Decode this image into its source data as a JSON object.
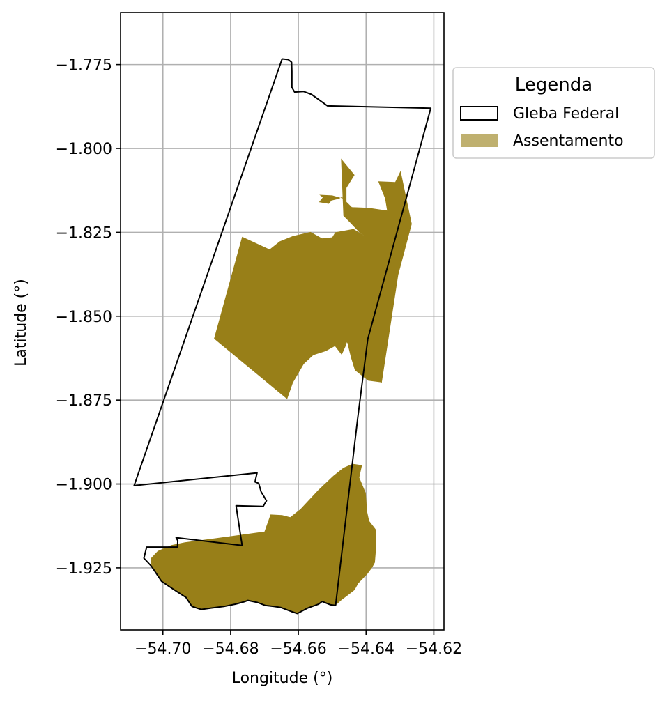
{
  "chart_data": {
    "type": "map",
    "xlabel": "Longitude (°)",
    "ylabel": "Latitude (°)",
    "xlim": [
      -54.7125,
      -54.617
    ],
    "ylim": [
      -1.9435,
      -1.7595
    ],
    "x_ticks": [
      -54.7,
      -54.68,
      -54.66,
      -54.64,
      -54.62
    ],
    "x_tick_labels": [
      "−54.70",
      "−54.68",
      "−54.66",
      "−54.64",
      "−54.62"
    ],
    "y_ticks": [
      -1.775,
      -1.8,
      -1.825,
      -1.85,
      -1.875,
      -1.9,
      -1.925
    ],
    "y_tick_labels": [
      "−1.775",
      "−1.800",
      "−1.825",
      "−1.850",
      "−1.875",
      "−1.900",
      "−1.925"
    ],
    "grid": true,
    "legend": {
      "title": "Legenda",
      "placement": "outside-upper-right",
      "entries": [
        {
          "label": "Gleba Federal",
          "style": "outline",
          "color": "#000000"
        },
        {
          "label": "Assentamento",
          "style": "fill",
          "color": "#bfb06f"
        }
      ]
    },
    "colors": {
      "assentamento_fill": "#987f18",
      "gleba_edge": "#000000",
      "grid": "#b0b0b0"
    },
    "layers": [
      {
        "name": "Gleba Federal",
        "kind": "outline",
        "coordinates": [
          [
            -54.6648,
            -1.7733
          ],
          [
            -54.663,
            -1.7735
          ],
          [
            -54.662,
            -1.7743
          ],
          [
            -54.6619,
            -1.777
          ],
          [
            -54.6619,
            -1.7818
          ],
          [
            -54.6611,
            -1.7832
          ],
          [
            -54.6585,
            -1.783
          ],
          [
            -54.6561,
            -1.7839
          ],
          [
            -54.6514,
            -1.7873
          ],
          [
            -54.6209,
            -1.788
          ],
          [
            -54.6395,
            -1.8568
          ],
          [
            -54.6425,
            -1.8806
          ],
          [
            -54.649,
            -1.9362
          ],
          [
            -54.6505,
            -1.936
          ],
          [
            -54.653,
            -1.935
          ],
          [
            -54.654,
            -1.9358
          ],
          [
            -54.6573,
            -1.937
          ],
          [
            -54.6603,
            -1.9386
          ],
          [
            -54.6621,
            -1.938
          ],
          [
            -54.6652,
            -1.9368
          ],
          [
            -54.6672,
            -1.9365
          ],
          [
            -54.6698,
            -1.9362
          ],
          [
            -54.6721,
            -1.9353
          ],
          [
            -54.6749,
            -1.9347
          ],
          [
            -54.6757,
            -1.935
          ],
          [
            -54.6785,
            -1.9358
          ],
          [
            -54.682,
            -1.9365
          ],
          [
            -54.686,
            -1.937
          ],
          [
            -54.6887,
            -1.9374
          ],
          [
            -54.6914,
            -1.9365
          ],
          [
            -54.6932,
            -1.9338
          ],
          [
            -54.697,
            -1.9313
          ],
          [
            -54.7004,
            -1.929
          ],
          [
            -54.7034,
            -1.9245
          ],
          [
            -54.7056,
            -1.9221
          ],
          [
            -54.7048,
            -1.9188
          ],
          [
            -54.6957,
            -1.9188
          ],
          [
            -54.6956,
            -1.9169
          ],
          [
            -54.6961,
            -1.916
          ],
          [
            -54.6766,
            -1.9183
          ],
          [
            -54.6784,
            -1.9065
          ],
          [
            -54.6704,
            -1.9067
          ],
          [
            -54.6694,
            -1.905
          ],
          [
            -54.671,
            -1.9023
          ],
          [
            -54.6717,
            -1.8998
          ],
          [
            -54.6728,
            -1.8994
          ],
          [
            -54.6722,
            -1.8967
          ],
          [
            -54.7085,
            -1.9005
          ]
        ]
      },
      {
        "name": "Assentamento",
        "kind": "fill",
        "parts": [
          [
            [
              -54.6474,
              -1.803
            ],
            [
              -54.6434,
              -1.8079
            ],
            [
              -54.6458,
              -1.8118
            ],
            [
              -54.6458,
              -1.8159
            ],
            [
              -54.6442,
              -1.8175
            ],
            [
              -54.6393,
              -1.8177
            ],
            [
              -54.6338,
              -1.8185
            ],
            [
              -54.6344,
              -1.8149
            ],
            [
              -54.6364,
              -1.8098
            ],
            [
              -54.6314,
              -1.81
            ],
            [
              -54.6298,
              -1.8067
            ],
            [
              -54.6265,
              -1.8225
            ],
            [
              -54.6305,
              -1.8377
            ],
            [
              -54.6354,
              -1.87
            ],
            [
              -54.6356,
              -1.8697
            ],
            [
              -54.6394,
              -1.8692
            ],
            [
              -54.6433,
              -1.8661
            ],
            [
              -54.6445,
              -1.8622
            ],
            [
              -54.6455,
              -1.858
            ],
            [
              -54.6457,
              -1.8578
            ],
            [
              -54.646,
              -1.8588
            ],
            [
              -54.6472,
              -1.8615
            ],
            [
              -54.6492,
              -1.8589
            ],
            [
              -54.6519,
              -1.8604
            ],
            [
              -54.6556,
              -1.8616
            ],
            [
              -54.6584,
              -1.8642
            ],
            [
              -54.6616,
              -1.8698
            ],
            [
              -54.6633,
              -1.8747
            ],
            [
              -54.6849,
              -1.8567
            ],
            [
              -54.6766,
              -1.8263
            ],
            [
              -54.6685,
              -1.8301
            ],
            [
              -54.6655,
              -1.8277
            ],
            [
              -54.6616,
              -1.8261
            ],
            [
              -54.6564,
              -1.8249
            ],
            [
              -54.653,
              -1.8268
            ],
            [
              -54.65,
              -1.8265
            ],
            [
              -54.6491,
              -1.825
            ],
            [
              -54.6437,
              -1.824
            ],
            [
              -54.64,
              -1.8264
            ],
            [
              -54.6418,
              -1.8252
            ],
            [
              -54.6448,
              -1.822
            ],
            [
              -54.6467,
              -1.8201
            ],
            [
              -54.6474,
              -1.803
            ]
          ],
          [
            [
              -54.6462,
              -1.8151
            ],
            [
              -54.6472,
              -1.8145
            ],
            [
              -54.648,
              -1.815
            ],
            [
              -54.6502,
              -1.8155
            ],
            [
              -54.651,
              -1.8165
            ],
            [
              -54.6539,
              -1.816
            ],
            [
              -54.6528,
              -1.8146
            ],
            [
              -54.6538,
              -1.8138
            ],
            [
              -54.65,
              -1.814
            ],
            [
              -54.6462,
              -1.8151
            ]
          ],
          [
            [
              -54.6412,
              -1.8944
            ],
            [
              -54.642,
              -1.8981
            ],
            [
              -54.6412,
              -1.9
            ],
            [
              -54.6401,
              -1.9027
            ],
            [
              -54.6397,
              -1.9082
            ],
            [
              -54.6391,
              -1.911
            ],
            [
              -54.6372,
              -1.9135
            ],
            [
              -54.637,
              -1.915
            ],
            [
              -54.637,
              -1.9185
            ],
            [
              -54.6374,
              -1.9234
            ],
            [
              -54.6382,
              -1.9249
            ],
            [
              -54.6396,
              -1.9268
            ],
            [
              -54.6423,
              -1.9296
            ],
            [
              -54.6434,
              -1.9316
            ],
            [
              -54.6458,
              -1.9335
            ],
            [
              -54.6472,
              -1.9345
            ],
            [
              -54.649,
              -1.9362
            ],
            [
              -54.6505,
              -1.936
            ],
            [
              -54.653,
              -1.935
            ],
            [
              -54.654,
              -1.9358
            ],
            [
              -54.6573,
              -1.937
            ],
            [
              -54.6603,
              -1.9386
            ],
            [
              -54.6621,
              -1.938
            ],
            [
              -54.6652,
              -1.9368
            ],
            [
              -54.6672,
              -1.9365
            ],
            [
              -54.6698,
              -1.9362
            ],
            [
              -54.6721,
              -1.9353
            ],
            [
              -54.6749,
              -1.9347
            ],
            [
              -54.6757,
              -1.935
            ],
            [
              -54.6785,
              -1.9358
            ],
            [
              -54.682,
              -1.9365
            ],
            [
              -54.686,
              -1.937
            ],
            [
              -54.6887,
              -1.9374
            ],
            [
              -54.6914,
              -1.9365
            ],
            [
              -54.6932,
              -1.9338
            ],
            [
              -54.697,
              -1.9313
            ],
            [
              -54.7004,
              -1.929
            ],
            [
              -54.7034,
              -1.9245
            ],
            [
              -54.7035,
              -1.9221
            ],
            [
              -54.7015,
              -1.92
            ],
            [
              -54.6975,
              -1.9182
            ],
            [
              -54.6935,
              -1.9174
            ],
            [
              -54.6845,
              -1.9162
            ],
            [
              -54.67,
              -1.9142
            ],
            [
              -54.6682,
              -1.9091
            ],
            [
              -54.6648,
              -1.9093
            ],
            [
              -54.6624,
              -1.9099
            ],
            [
              -54.6594,
              -1.9075
            ],
            [
              -54.6541,
              -1.9018
            ],
            [
              -54.6497,
              -1.8976
            ],
            [
              -54.6467,
              -1.8952
            ],
            [
              -54.644,
              -1.894
            ],
            [
              -54.6412,
              -1.8944
            ]
          ]
        ]
      }
    ]
  }
}
